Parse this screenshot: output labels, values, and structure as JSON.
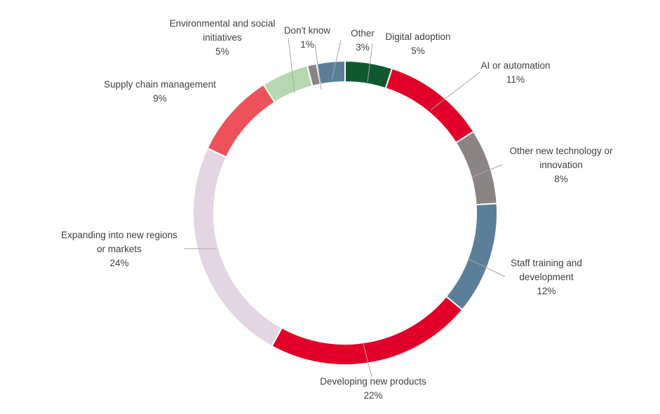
{
  "chart_data": {
    "type": "pie",
    "donut": true,
    "title": "",
    "slices": [
      {
        "label": [
          "Digital adoption"
        ],
        "value": 5,
        "color": "#11582f"
      },
      {
        "label": [
          "AI or automation"
        ],
        "value": 11,
        "color": "#e10029"
      },
      {
        "label": [
          "Other new technology or",
          "innovation"
        ],
        "value": 8,
        "color": "#8a8584"
      },
      {
        "label": [
          "Staff training and",
          "development"
        ],
        "value": 12,
        "color": "#5c7f99"
      },
      {
        "label": [
          "Developing new products"
        ],
        "value": 22,
        "color": "#e10029"
      },
      {
        "label": [
          "Expanding into new regions",
          "or markets"
        ],
        "value": 24,
        "color": "#e3d5e1"
      },
      {
        "label": [
          "Supply chain management"
        ],
        "value": 9,
        "color": "#ed525a"
      },
      {
        "label": [
          "Environmental and social",
          "initiatives"
        ],
        "value": 5,
        "color": "#b5d8b0"
      },
      {
        "label": [
          "Don't know"
        ],
        "value": 1,
        "color": "#8a8584"
      },
      {
        "label": [
          "Other"
        ],
        "value": 3,
        "color": "#5c7f99"
      }
    ],
    "value_suffix": "%",
    "legend": "none",
    "start_angle": "top, clockwise"
  }
}
